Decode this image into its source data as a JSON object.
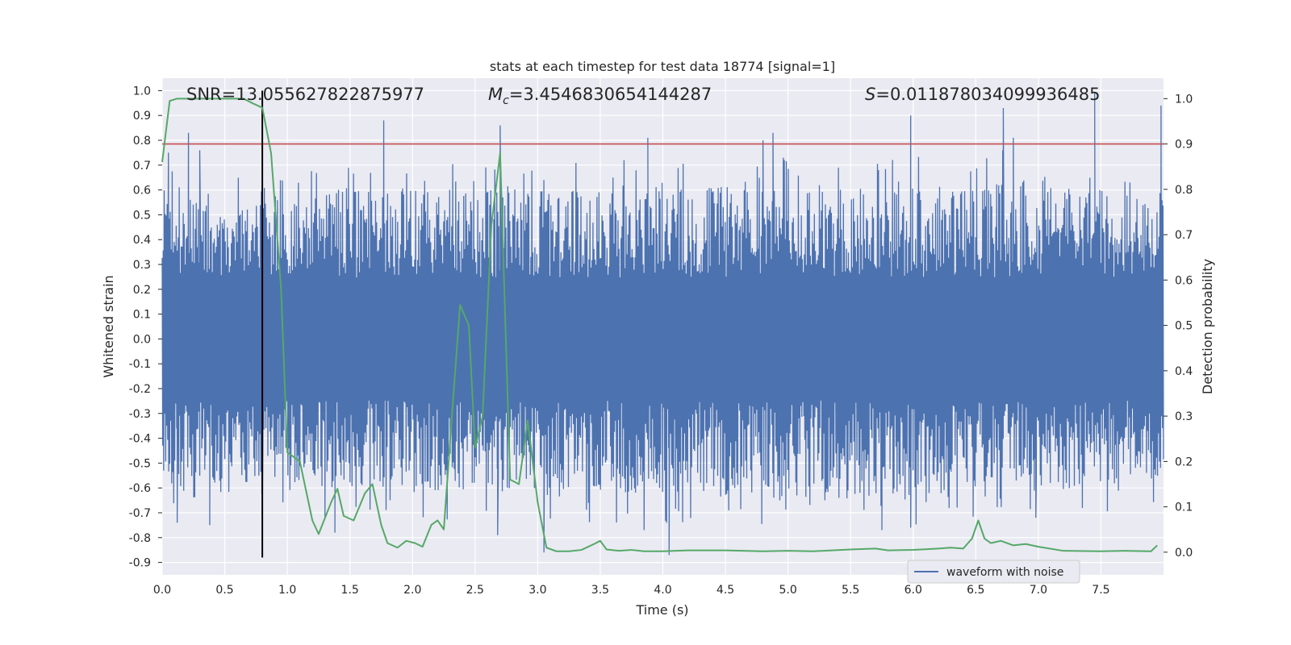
{
  "chart_data": {
    "type": "line",
    "title": "stats at each timestep for test data 18774 [signal=1]",
    "xlabel": "Time (s)",
    "ylabel": "Whitened strain",
    "y2label": "Detection probability",
    "xlim": [
      0.0,
      8.0
    ],
    "ylim": [
      -0.95,
      1.05
    ],
    "y2lim": [
      -0.05,
      1.045
    ],
    "x_ticks": [
      0.0,
      0.5,
      1.0,
      1.5,
      2.0,
      2.5,
      3.0,
      3.5,
      4.0,
      4.5,
      5.0,
      5.5,
      6.0,
      6.5,
      7.0,
      7.5
    ],
    "x_tick_labels": [
      "0.0",
      "0.5",
      "1.0",
      "1.5",
      "2.0",
      "2.5",
      "3.0",
      "3.5",
      "4.0",
      "4.5",
      "5.0",
      "5.5",
      "6.0",
      "6.5",
      "7.0",
      "7.5"
    ],
    "y_ticks": [
      1.0,
      0.9,
      0.8,
      0.7,
      0.6,
      0.5,
      0.4,
      0.3,
      0.2,
      0.1,
      0.0,
      -0.1,
      -0.2,
      -0.3,
      -0.4,
      -0.5,
      -0.6,
      -0.7,
      -0.8,
      -0.9
    ],
    "y_tick_labels": [
      "1.0",
      "0.9",
      "0.8",
      "0.7",
      "0.6",
      "0.5",
      "0.4",
      "0.3",
      "0.2",
      "0.1",
      "0.0",
      "-0.1",
      "-0.2",
      "-0.3",
      "-0.4",
      "-0.5",
      "-0.6",
      "-0.7",
      "-0.8",
      "-0.9"
    ],
    "y2_ticks": [
      1.0,
      0.9,
      0.8,
      0.7,
      0.6,
      0.5,
      0.4,
      0.3,
      0.2,
      0.1,
      0.0
    ],
    "y2_tick_labels": [
      "1.0",
      "0.9",
      "0.8",
      "0.7",
      "0.6",
      "0.5",
      "0.4",
      "0.3",
      "0.2",
      "0.1",
      "0.0"
    ],
    "annotations": {
      "snr": "SNR=13.055627822875977",
      "mc_symbol": "M",
      "mc_sub": "c",
      "mc_value": "=3.4546830654144287",
      "s_symbol": "S",
      "s_value": "=0.011878034099936485"
    },
    "legend": {
      "label": "waveform with noise",
      "position": "bottom-right"
    },
    "threshold_y2": 0.9,
    "marker_time": 0.8,
    "waveform": {
      "name": "waveform with noise",
      "color": "#4c72b0",
      "samples": 2000,
      "upper_envelope": [
        [
          0.0,
          0.52
        ],
        [
          0.05,
          0.6
        ],
        [
          0.1,
          0.55
        ],
        [
          0.2,
          0.58
        ],
        [
          0.3,
          0.55
        ],
        [
          0.5,
          0.52
        ],
        [
          0.8,
          0.55
        ],
        [
          1.0,
          0.55
        ],
        [
          1.2,
          0.6
        ],
        [
          1.5,
          0.62
        ],
        [
          1.8,
          0.62
        ],
        [
          2.0,
          0.6
        ],
        [
          2.3,
          0.6
        ],
        [
          2.5,
          0.58
        ],
        [
          2.7,
          0.62
        ],
        [
          3.0,
          0.6
        ],
        [
          3.5,
          0.6
        ],
        [
          4.0,
          0.62
        ],
        [
          4.5,
          0.62
        ],
        [
          5.0,
          0.62
        ],
        [
          5.5,
          0.62
        ],
        [
          6.0,
          0.62
        ],
        [
          6.5,
          0.64
        ],
        [
          7.0,
          0.64
        ],
        [
          7.5,
          0.6
        ],
        [
          8.0,
          0.58
        ]
      ],
      "lower_envelope": [
        [
          0.0,
          -0.55
        ],
        [
          0.1,
          -0.6
        ],
        [
          0.3,
          -0.58
        ],
        [
          0.5,
          -0.58
        ],
        [
          0.8,
          -0.55
        ],
        [
          1.0,
          -0.55
        ],
        [
          1.3,
          -0.6
        ],
        [
          1.6,
          -0.6
        ],
        [
          2.0,
          -0.6
        ],
        [
          2.3,
          -0.62
        ],
        [
          2.6,
          -0.6
        ],
        [
          3.0,
          -0.62
        ],
        [
          3.5,
          -0.62
        ],
        [
          4.0,
          -0.62
        ],
        [
          4.5,
          -0.64
        ],
        [
          5.0,
          -0.64
        ],
        [
          5.5,
          -0.64
        ],
        [
          6.0,
          -0.64
        ],
        [
          6.5,
          -0.6
        ],
        [
          7.0,
          -0.62
        ],
        [
          7.5,
          -0.62
        ],
        [
          8.0,
          -0.55
        ]
      ],
      "peaks": [
        [
          0.05,
          0.75
        ],
        [
          0.21,
          0.83
        ],
        [
          0.3,
          0.76
        ],
        [
          1.77,
          0.88
        ],
        [
          2.7,
          0.86
        ],
        [
          3.88,
          0.81
        ],
        [
          4.8,
          0.8
        ],
        [
          4.88,
          0.83
        ],
        [
          5.98,
          0.9
        ],
        [
          6.72,
          0.93
        ],
        [
          6.8,
          0.81
        ],
        [
          7.45,
          0.99
        ],
        [
          7.98,
          0.94
        ]
      ],
      "troughs": [
        [
          0.12,
          -0.74
        ],
        [
          0.38,
          -0.75
        ],
        [
          0.8,
          -0.72
        ],
        [
          1.38,
          -0.78
        ],
        [
          2.68,
          -0.79
        ],
        [
          3.05,
          -0.86
        ],
        [
          4.05,
          -0.87
        ],
        [
          3.85,
          -0.77
        ],
        [
          5.75,
          -0.77
        ],
        [
          5.98,
          -0.76
        ],
        [
          6.98,
          -0.72
        ]
      ],
      "typical_range": [
        -0.45,
        0.45
      ]
    },
    "detection_probability": {
      "name": "detection probability",
      "color": "#55a868",
      "x": [
        0.0,
        0.06,
        0.12,
        0.2,
        0.3,
        0.4,
        0.5,
        0.6,
        0.65,
        0.72,
        0.8,
        0.87,
        0.95,
        1.0,
        1.1,
        1.2,
        1.25,
        1.35,
        1.4,
        1.45,
        1.53,
        1.62,
        1.68,
        1.75,
        1.8,
        1.88,
        1.95,
        2.02,
        2.08,
        2.15,
        2.2,
        2.25,
        2.32,
        2.38,
        2.45,
        2.5,
        2.56,
        2.63,
        2.7,
        2.78,
        2.85,
        2.92,
        3.0,
        3.07,
        3.15,
        3.25,
        3.35,
        3.45,
        3.5,
        3.55,
        3.65,
        3.75,
        3.85,
        4.0,
        4.2,
        4.5,
        4.8,
        5.0,
        5.2,
        5.5,
        5.7,
        5.8,
        6.0,
        6.2,
        6.3,
        6.4,
        6.47,
        6.52,
        6.57,
        6.62,
        6.7,
        6.8,
        6.9,
        7.0,
        7.2,
        7.5,
        7.7,
        7.9,
        7.95
      ],
      "y": [
        0.86,
        0.995,
        1.0,
        1.0,
        1.0,
        1.0,
        1.0,
        1.0,
        1.0,
        0.99,
        0.98,
        0.88,
        0.58,
        0.22,
        0.2,
        0.07,
        0.04,
        0.11,
        0.14,
        0.08,
        0.07,
        0.13,
        0.15,
        0.06,
        0.02,
        0.01,
        0.025,
        0.02,
        0.012,
        0.06,
        0.07,
        0.05,
        0.32,
        0.545,
        0.5,
        0.23,
        0.3,
        0.72,
        0.88,
        0.16,
        0.15,
        0.29,
        0.11,
        0.01,
        0.002,
        0.002,
        0.005,
        0.018,
        0.025,
        0.006,
        0.003,
        0.005,
        0.002,
        0.002,
        0.004,
        0.004,
        0.002,
        0.003,
        0.002,
        0.006,
        0.008,
        0.004,
        0.005,
        0.008,
        0.01,
        0.008,
        0.03,
        0.07,
        0.03,
        0.02,
        0.025,
        0.015,
        0.018,
        0.012,
        0.003,
        0.002,
        0.003,
        0.002,
        0.015
      ]
    }
  }
}
